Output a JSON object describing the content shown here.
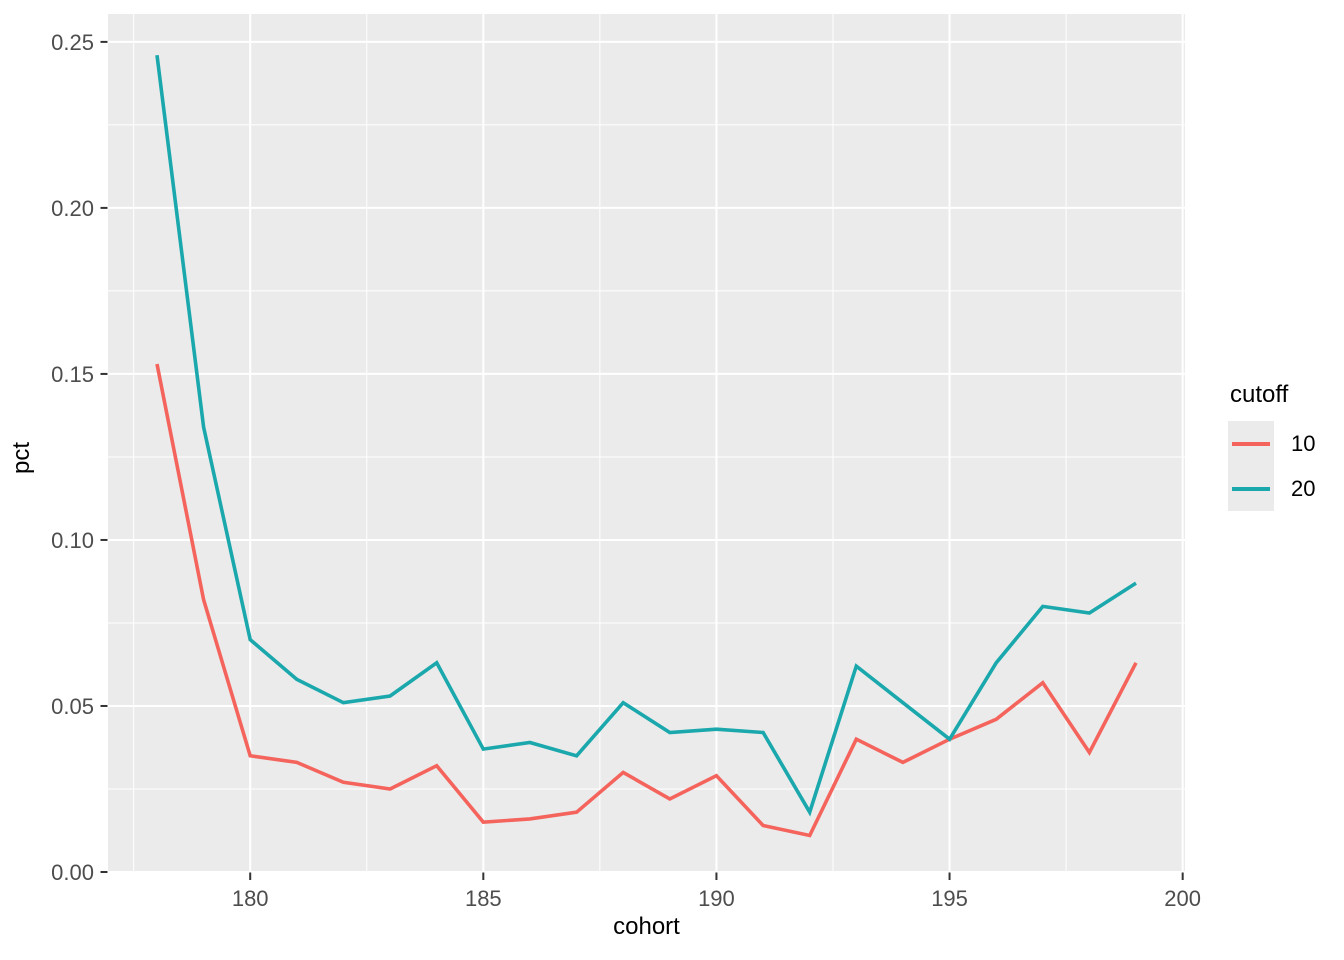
{
  "chart_data": {
    "type": "line",
    "title": "",
    "xlabel": "cohort",
    "ylabel": "pct",
    "legend_title": "cutoff",
    "legend_position": "right",
    "x": [
      178,
      179,
      180,
      181,
      182,
      183,
      184,
      185,
      186,
      187,
      188,
      189,
      190,
      191,
      192,
      193,
      194,
      195,
      196,
      197,
      198,
      199
    ],
    "series": [
      {
        "name": "10",
        "color": "#F4645C",
        "values": [
          0.153,
          0.082,
          0.035,
          0.033,
          0.027,
          0.025,
          0.032,
          0.015,
          0.016,
          0.018,
          0.03,
          0.022,
          0.029,
          0.014,
          0.011,
          0.04,
          0.033,
          0.04,
          0.046,
          0.057,
          0.036,
          0.063
        ]
      },
      {
        "name": "20",
        "color": "#1BA8AD",
        "values": [
          0.246,
          0.134,
          0.07,
          0.058,
          0.051,
          0.053,
          0.063,
          0.037,
          0.039,
          0.035,
          0.051,
          0.042,
          0.043,
          0.042,
          0.018,
          0.062,
          0.051,
          0.04,
          0.063,
          0.08,
          0.078,
          0.087
        ]
      }
    ],
    "xlim": [
      176.95,
      200.05
    ],
    "ylim": [
      0,
      0.2584
    ],
    "x_ticks": [
      180,
      185,
      190,
      195,
      200
    ],
    "x_tick_labels": [
      "180",
      "185",
      "190",
      "195",
      "200"
    ],
    "y_ticks": [
      0,
      0.05,
      0.1,
      0.15,
      0.2,
      0.25
    ],
    "y_tick_labels": [
      "0.00",
      "0.05",
      "0.10",
      "0.15",
      "0.20",
      "0.25"
    ],
    "x_minor_gridlines": [
      177.5,
      182.5,
      187.5,
      192.5,
      197.5
    ],
    "y_minor_gridlines": [
      0.025,
      0.075,
      0.125,
      0.175,
      0.225
    ],
    "grid_on": true,
    "panel_bg": "#EBEBEB",
    "grid_color": "#FFFFFF",
    "tick_color": "#333333",
    "tick_label_color": "#4D4D4D",
    "axis_title_color": "#000000",
    "legend_key_bg": "#EBEBEB"
  }
}
